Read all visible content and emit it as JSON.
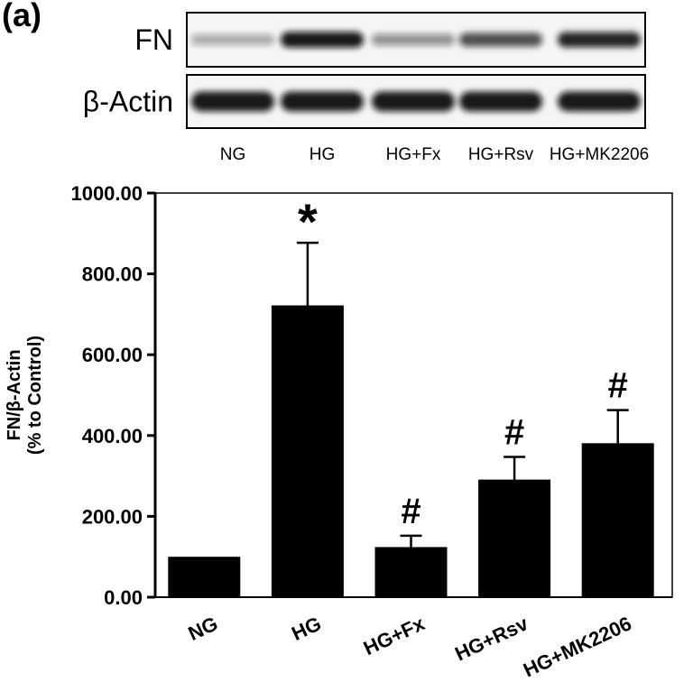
{
  "figure": {
    "panel_label": "(a)"
  },
  "western_blot": {
    "rows": [
      {
        "label": "FN",
        "intensities": [
          0.35,
          0.95,
          0.45,
          0.72,
          0.9
        ]
      },
      {
        "label": "β-Actin",
        "intensities": [
          0.95,
          0.95,
          0.95,
          0.95,
          0.95
        ]
      }
    ],
    "lanes": [
      "NG",
      "HG",
      "HG+Fx",
      "HG+Rsv",
      "HG+MK2206"
    ],
    "colors": {
      "band": "#111111",
      "background": "#f5f5f5"
    }
  },
  "chart_data": {
    "type": "bar",
    "categories": [
      "NG",
      "HG",
      "HG+Fx",
      "HG+Rsv",
      "HG+MK2206"
    ],
    "values": [
      100,
      722,
      124,
      291,
      381
    ],
    "errors": [
      0,
      155,
      28,
      56,
      82
    ],
    "annotations": [
      "",
      "*",
      "#",
      "#",
      "#"
    ],
    "ylabel_line1": "FN/β-Actin",
    "ylabel_line2": "(% to Control)",
    "xlabel": "",
    "ylim": [
      0,
      1000
    ],
    "yticks": [
      0,
      200,
      400,
      600,
      800,
      1000
    ],
    "ytick_labels": [
      "0.00",
      "200.00",
      "400.00",
      "600.00",
      "800.00",
      "1000.00"
    ],
    "bar_color": "#000000",
    "grid": false,
    "legend": "none"
  }
}
